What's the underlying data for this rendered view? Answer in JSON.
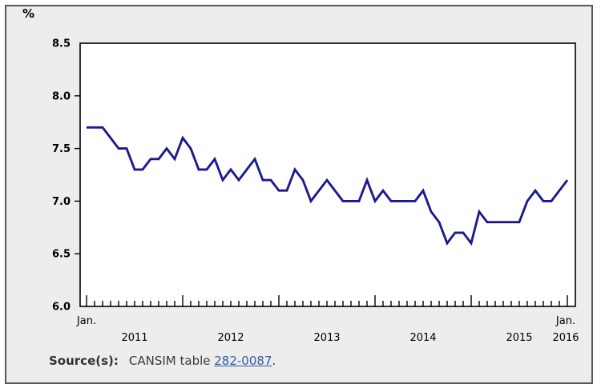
{
  "unit_label": "%",
  "source_line": {
    "label": "Source(s):",
    "prefix": "CANSIM table ",
    "link_text": "282-0087",
    "suffix": "."
  },
  "colors": {
    "panel_bg": "#ededed",
    "panel_border": "#58585a",
    "plot_bg": "#ffffff",
    "plot_frame": "#000000",
    "line": "#1a1a8f",
    "link": "#2e5b9f",
    "axis_text": "#000000"
  },
  "chart_data": {
    "type": "line",
    "title": "",
    "ylabel": "%",
    "xlabel": "",
    "ylim": [
      6.0,
      8.5
    ],
    "y_ticks": [
      6.0,
      6.5,
      7.0,
      7.5,
      8.0,
      8.5
    ],
    "y_tick_labels": [
      "6.0",
      "6.5",
      "7.0",
      "7.5",
      "8.0",
      "8.5"
    ],
    "x_start": "Jan. 2011",
    "x_end": "Jan. 2016",
    "frequency": "monthly",
    "x_first_tick_label": "Jan.",
    "x_last_tick_label": "Jan.",
    "x_year_labels": [
      "2011",
      "2012",
      "2013",
      "2014",
      "2015",
      "2016"
    ],
    "grid": false,
    "legend": false,
    "line_color": "#1a1a8f",
    "values": [
      7.7,
      7.7,
      7.7,
      7.6,
      7.5,
      7.5,
      7.3,
      7.3,
      7.4,
      7.4,
      7.5,
      7.4,
      7.6,
      7.5,
      7.3,
      7.3,
      7.4,
      7.2,
      7.3,
      7.2,
      7.3,
      7.4,
      7.2,
      7.2,
      7.1,
      7.1,
      7.3,
      7.2,
      7.0,
      7.1,
      7.2,
      7.1,
      7.0,
      7.0,
      7.0,
      7.2,
      7.0,
      7.1,
      7.0,
      7.0,
      7.0,
      7.0,
      7.1,
      6.9,
      6.8,
      6.6,
      6.7,
      6.7,
      6.6,
      6.9,
      6.8,
      6.8,
      6.8,
      6.8,
      6.8,
      7.0,
      7.1,
      7.0,
      7.0,
      7.1,
      7.2
    ]
  }
}
